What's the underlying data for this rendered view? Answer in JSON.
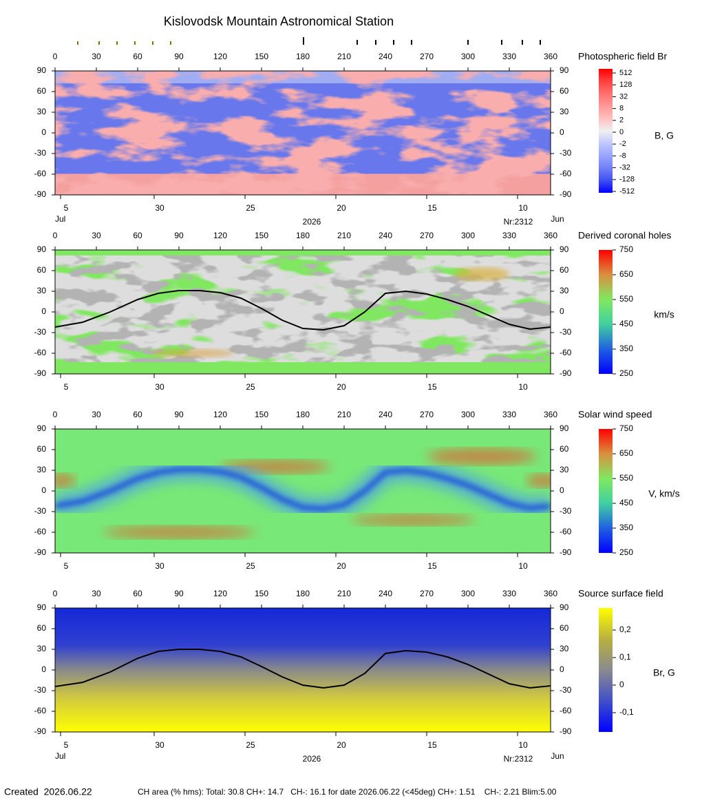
{
  "title": "Kislovodsk Mountain Astronomical Station",
  "chart_data": [
    {
      "type": "heatmap",
      "title": "Photospheric field Br",
      "xlim": [
        0,
        360
      ],
      "xticks": [
        0,
        30,
        60,
        90,
        120,
        150,
        180,
        210,
        240,
        270,
        300,
        330,
        360
      ],
      "ylim": [
        -90,
        90
      ],
      "yticks": [
        -90,
        -60,
        -30,
        0,
        30,
        60,
        90
      ],
      "date_ticks": [
        {
          "value": 4,
          "label": "5"
        },
        {
          "value": 72,
          "label": "30"
        },
        {
          "value": 138,
          "label": "25"
        },
        {
          "value": 204,
          "label": "20"
        },
        {
          "value": 270,
          "label": "15"
        },
        {
          "value": 336,
          "label": "10"
        }
      ],
      "date_labels": {
        "start": "Jul",
        "year": "2026",
        "rotation": "Nr:2312",
        "end": "Jun"
      },
      "colorbar": {
        "label": "B, G",
        "ticks": [
          512,
          128,
          32,
          8,
          2,
          0,
          -2,
          -8,
          -32,
          -128,
          -512
        ],
        "colors": [
          "#ff0000",
          "#ff4040",
          "#ff7070",
          "#ff9898",
          "#ffc0c0",
          "#f0f0f0",
          "#c0c8ff",
          "#98a4ff",
          "#7080f8",
          "#4050f0",
          "#0000ff"
        ]
      }
    },
    {
      "type": "heatmap",
      "title": "Derived coronal holes",
      "xlim": [
        0,
        360
      ],
      "xticks": [
        0,
        30,
        60,
        90,
        120,
        150,
        180,
        210,
        240,
        270,
        300,
        330,
        360
      ],
      "ylim": [
        -90,
        90
      ],
      "yticks": [
        -90,
        -60,
        -30,
        0,
        30,
        60,
        90
      ],
      "date_ticks": [
        {
          "value": 4,
          "label": "5"
        },
        {
          "value": 72,
          "label": "30"
        },
        {
          "value": 138,
          "label": "25"
        },
        {
          "value": 204,
          "label": "20"
        },
        {
          "value": 270,
          "label": "15"
        },
        {
          "value": 336,
          "label": "10"
        }
      ],
      "colorbar": {
        "label": "km/s",
        "lim": [
          250,
          750
        ],
        "ticks": [
          750,
          650,
          550,
          450,
          350,
          250
        ],
        "colors": [
          "#ff0000",
          "#d89040",
          "#80e860",
          "#40d0a0",
          "#2060e0",
          "#0000ff"
        ]
      },
      "series": [
        {
          "color": "#000000",
          "x": [
            0,
            20,
            40,
            60,
            75,
            90,
            105,
            120,
            135,
            150,
            165,
            180,
            195,
            210,
            225,
            240,
            255,
            270,
            285,
            300,
            315,
            330,
            345,
            360
          ],
          "values": [
            -22,
            -15,
            0,
            18,
            27,
            31,
            31,
            28,
            20,
            5,
            -12,
            -24,
            -26,
            -20,
            0,
            27,
            30,
            26,
            18,
            8,
            -5,
            -18,
            -25,
            -22
          ]
        }
      ]
    },
    {
      "type": "heatmap",
      "title": "Solar wind speed",
      "xlim": [
        0,
        360
      ],
      "xticks": [
        0,
        30,
        60,
        90,
        120,
        150,
        180,
        210,
        240,
        270,
        300,
        330,
        360
      ],
      "ylim": [
        -90,
        90
      ],
      "yticks": [
        -90,
        -60,
        -30,
        0,
        30,
        60,
        90
      ],
      "date_ticks": [
        {
          "value": 4,
          "label": "5"
        },
        {
          "value": 72,
          "label": "30"
        },
        {
          "value": 138,
          "label": "25"
        },
        {
          "value": 204,
          "label": "20"
        },
        {
          "value": 270,
          "label": "15"
        },
        {
          "value": 336,
          "label": "10"
        }
      ],
      "colorbar": {
        "label": "V, km/s",
        "lim": [
          250,
          750
        ],
        "ticks": [
          750,
          650,
          550,
          450,
          350,
          250
        ],
        "colors": [
          "#ff0000",
          "#d89040",
          "#80e860",
          "#40d0a0",
          "#2060e0",
          "#0000ff"
        ]
      }
    },
    {
      "type": "heatmap",
      "title": "Source surface field",
      "xlim": [
        0,
        360
      ],
      "xticks": [
        0,
        30,
        60,
        90,
        120,
        150,
        180,
        210,
        240,
        270,
        300,
        330,
        360
      ],
      "ylim": [
        -90,
        90
      ],
      "yticks": [
        -90,
        -60,
        -30,
        0,
        30,
        60,
        90
      ],
      "date_ticks": [
        {
          "value": 4,
          "label": "5"
        },
        {
          "value": 72,
          "label": "30"
        },
        {
          "value": 138,
          "label": "25"
        },
        {
          "value": 204,
          "label": "20"
        },
        {
          "value": 270,
          "label": "15"
        },
        {
          "value": 336,
          "label": "10"
        }
      ],
      "date_labels": {
        "start": "Jul",
        "year": "2026",
        "rotation": "Nr:2312",
        "end": "Jun"
      },
      "colorbar": {
        "label": "Br, G",
        "lim": [
          -0.17,
          0.28
        ],
        "ticks": [
          {
            "value": 0.2,
            "label": "0,2"
          },
          {
            "value": 0.1,
            "label": "0,1"
          },
          0,
          {
            "value": -0.1,
            "label": "-0,1"
          }
        ],
        "colors": [
          "#ffff00",
          "#b8b040",
          "#8a8a90",
          "#4050c8",
          "#0000ff"
        ]
      },
      "series": [
        {
          "color": "#000000",
          "x": [
            0,
            20,
            40,
            60,
            75,
            90,
            105,
            120,
            135,
            150,
            165,
            180,
            195,
            210,
            225,
            240,
            255,
            270,
            285,
            300,
            315,
            330,
            345,
            360
          ],
          "values": [
            -24,
            -18,
            -3,
            17,
            27,
            30,
            30,
            27,
            19,
            5,
            -10,
            -22,
            -26,
            -22,
            -5,
            24,
            28,
            26,
            19,
            8,
            -6,
            -20,
            -26,
            -23
          ]
        }
      ]
    }
  ],
  "footer": {
    "created": "Created  2026.06.22",
    "ch_area": "CH area (% hms): Total: 30.8 CH+: 14.7   CH-: 16.1 for date 2026.06.22 (<45deg) CH+: 1.51    CH-: 2.21 Blim:5.00"
  }
}
